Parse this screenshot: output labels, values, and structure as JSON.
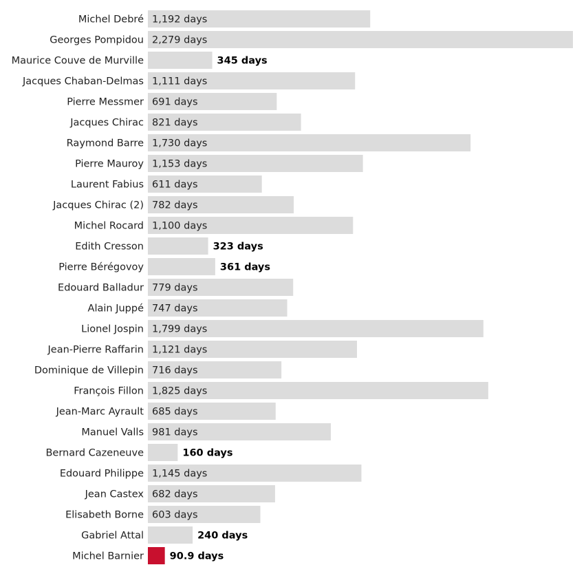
{
  "chart_data": {
    "type": "bar",
    "orientation": "horizontal",
    "unit_suffix": " days",
    "colors": {
      "default": "#dcdcdc",
      "highlight": "#c8102e"
    },
    "categories": [
      "Michel Debré",
      "Georges Pompidou",
      "Maurice Couve de Murville",
      "Jacques Chaban-Delmas",
      "Pierre Messmer",
      "Jacques Chirac",
      "Raymond Barre",
      "Pierre Mauroy",
      "Laurent Fabius",
      "Jacques Chirac (2)",
      "Michel Rocard",
      "Edith Cresson",
      "Pierre Bérégovoy",
      "Edouard Balladur",
      "Alain Juppé",
      "Lionel Jospin",
      "Jean-Pierre Raffarin",
      "Dominique de Villepin",
      "François Fillon",
      "Jean-Marc Ayrault",
      "Manuel Valls",
      "Bernard Cazeneuve",
      "Edouard Philippe",
      "Jean Castex",
      "Elisabeth Borne",
      "Gabriel Attal",
      "Michel Barnier"
    ],
    "values": [
      1192,
      2279,
      345,
      1111,
      691,
      821,
      1730,
      1153,
      611,
      782,
      1100,
      323,
      361,
      779,
      747,
      1799,
      1121,
      716,
      1825,
      685,
      981,
      160,
      1145,
      682,
      603,
      240,
      90.9
    ],
    "labels": [
      "1,192 days",
      "2,279 days",
      "345 days",
      "1,111 days",
      "691 days",
      "821 days",
      "1,730 days",
      "1,153 days",
      "611 days",
      "782 days",
      "1,100 days",
      "323 days",
      "361 days",
      "779 days",
      "747 days",
      "1,799 days",
      "1,121 days",
      "716 days",
      "1,825 days",
      "685 days",
      "981 days",
      "160 days",
      "1,145 days",
      "682 days",
      "603 days",
      "240 days",
      "90.9 days"
    ],
    "highlight": [
      "Michel Barnier"
    ],
    "xlim": [
      0,
      2279
    ]
  }
}
